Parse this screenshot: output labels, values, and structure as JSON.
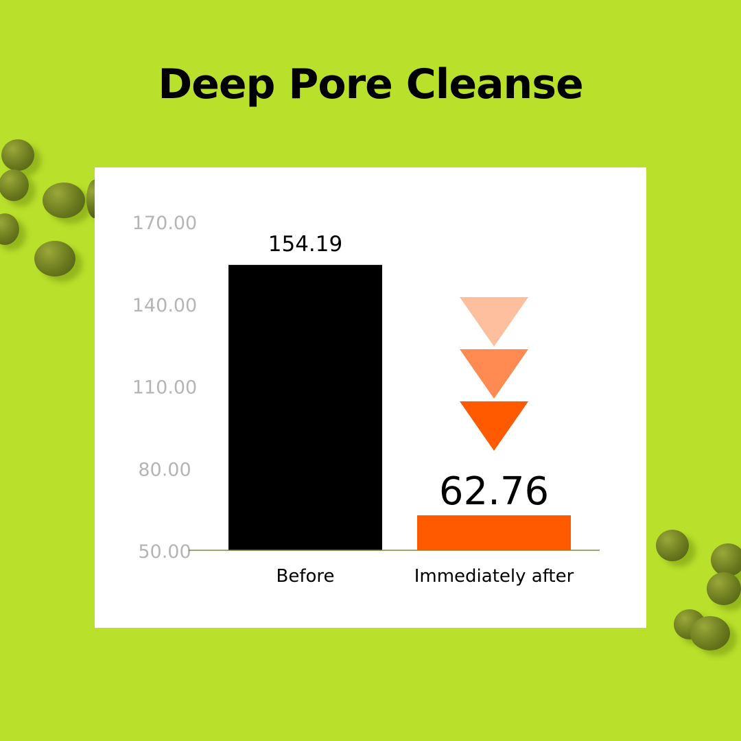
{
  "title": "Deep Pore Cleanse",
  "colors": {
    "background": "#b9e02b",
    "before_bar": "#000000",
    "after_bar": "#ff5a00",
    "arrow_light": "#fdbf9e",
    "arrow_mid": "#ff8a52",
    "arrow_dark": "#ff5a00",
    "tick_label": "#b5b5b5",
    "axis_line": "#7a8a3a"
  },
  "decoration_icons": [
    "mung-bean-icon",
    "down-arrow-triangle-icon"
  ],
  "chart_data": {
    "type": "bar",
    "title": "Deep Pore Cleanse",
    "categories": [
      "Before",
      "Immediately after"
    ],
    "values": [
      154.19,
      62.76
    ],
    "data_labels": [
      "154.19",
      "62.76"
    ],
    "ylim": [
      50,
      170
    ],
    "yticks": [
      "50.00",
      "80.00",
      "110.00",
      "140.00",
      "170.00"
    ],
    "xlabel": "",
    "ylabel": "",
    "grid": false
  }
}
